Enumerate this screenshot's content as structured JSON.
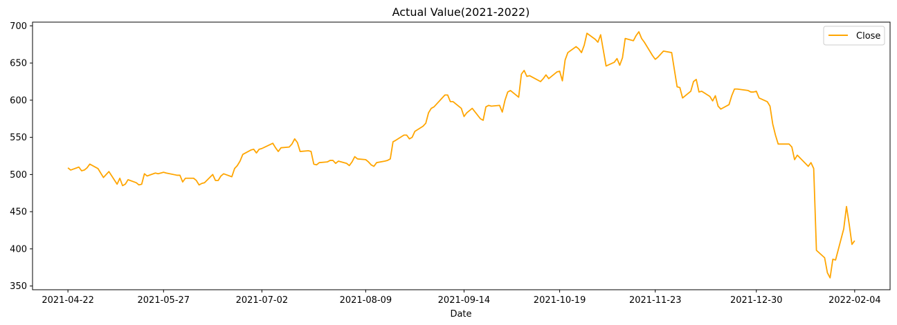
{
  "chart_data": {
    "type": "line",
    "title": "Actual Value(2021-2022)",
    "xlabel": "Date",
    "ylabel": "",
    "ylim": [
      345,
      705
    ],
    "yticks": [
      350,
      400,
      450,
      500,
      550,
      600,
      650,
      700
    ],
    "xticks": [
      "2021-04-22",
      "2021-05-27",
      "2021-07-02",
      "2021-08-09",
      "2021-09-14",
      "2021-10-19",
      "2021-11-23",
      "2021-12-30",
      "2022-02-04"
    ],
    "legend_position": "top-right",
    "series": [
      {
        "name": "Close",
        "color": "#ffa500",
        "x": [
          "2021-04-22",
          "2021-04-23",
          "2021-04-26",
          "2021-04-27",
          "2021-04-28",
          "2021-04-29",
          "2021-04-30",
          "2021-05-03",
          "2021-05-04",
          "2021-05-05",
          "2021-05-06",
          "2021-05-07",
          "2021-05-10",
          "2021-05-11",
          "2021-05-12",
          "2021-05-13",
          "2021-05-14",
          "2021-05-17",
          "2021-05-18",
          "2021-05-19",
          "2021-05-20",
          "2021-05-21",
          "2021-05-24",
          "2021-05-25",
          "2021-05-26",
          "2021-05-27",
          "2021-05-28",
          "2021-06-01",
          "2021-06-02",
          "2021-06-03",
          "2021-06-04",
          "2021-06-07",
          "2021-06-08",
          "2021-06-09",
          "2021-06-10",
          "2021-06-11",
          "2021-06-14",
          "2021-06-15",
          "2021-06-16",
          "2021-06-17",
          "2021-06-18",
          "2021-06-21",
          "2021-06-22",
          "2021-06-23",
          "2021-06-24",
          "2021-06-25",
          "2021-06-28",
          "2021-06-29",
          "2021-06-30",
          "2021-07-01",
          "2021-07-02",
          "2021-07-06",
          "2021-07-07",
          "2021-07-08",
          "2021-07-09",
          "2021-07-12",
          "2021-07-13",
          "2021-07-14",
          "2021-07-15",
          "2021-07-16",
          "2021-07-19",
          "2021-07-20",
          "2021-07-21",
          "2021-07-22",
          "2021-07-23",
          "2021-07-26",
          "2021-07-27",
          "2021-07-28",
          "2021-07-29",
          "2021-07-30",
          "2021-08-02",
          "2021-08-03",
          "2021-08-04",
          "2021-08-05",
          "2021-08-06",
          "2021-08-09",
          "2021-08-10",
          "2021-08-11",
          "2021-08-12",
          "2021-08-13",
          "2021-08-16",
          "2021-08-17",
          "2021-08-18",
          "2021-08-19",
          "2021-08-20",
          "2021-08-23",
          "2021-08-24",
          "2021-08-25",
          "2021-08-26",
          "2021-08-27",
          "2021-08-30",
          "2021-08-31",
          "2021-09-01",
          "2021-09-02",
          "2021-09-03",
          "2021-09-07",
          "2021-09-08",
          "2021-09-09",
          "2021-09-10",
          "2021-09-13",
          "2021-09-14",
          "2021-09-15",
          "2021-09-16",
          "2021-09-17",
          "2021-09-20",
          "2021-09-21",
          "2021-09-22",
          "2021-09-23",
          "2021-09-24",
          "2021-09-27",
          "2021-09-28",
          "2021-09-29",
          "2021-09-30",
          "2021-10-01",
          "2021-10-04",
          "2021-10-05",
          "2021-10-06",
          "2021-10-07",
          "2021-10-08",
          "2021-10-11",
          "2021-10-12",
          "2021-10-13",
          "2021-10-14",
          "2021-10-15",
          "2021-10-18",
          "2021-10-19",
          "2021-10-20",
          "2021-10-21",
          "2021-10-22",
          "2021-10-25",
          "2021-10-26",
          "2021-10-27",
          "2021-10-28",
          "2021-10-29",
          "2021-11-01",
          "2021-11-02",
          "2021-11-03",
          "2021-11-04",
          "2021-11-05",
          "2021-11-08",
          "2021-11-09",
          "2021-11-10",
          "2021-11-11",
          "2021-11-12",
          "2021-11-15",
          "2021-11-16",
          "2021-11-17",
          "2021-11-18",
          "2021-11-19",
          "2021-11-22",
          "2021-11-23",
          "2021-11-24",
          "2021-11-26",
          "2021-11-29",
          "2021-11-30",
          "2021-12-01",
          "2021-12-02",
          "2021-12-03",
          "2021-12-06",
          "2021-12-07",
          "2021-12-08",
          "2021-12-09",
          "2021-12-10",
          "2021-12-13",
          "2021-12-14",
          "2021-12-15",
          "2021-12-16",
          "2021-12-17",
          "2021-12-20",
          "2021-12-21",
          "2021-12-22",
          "2021-12-23",
          "2021-12-27",
          "2021-12-28",
          "2021-12-29",
          "2021-12-30",
          "2021-12-31",
          "2022-01-03",
          "2022-01-04",
          "2022-01-05",
          "2022-01-06",
          "2022-01-07",
          "2022-01-10",
          "2022-01-11",
          "2022-01-12",
          "2022-01-13",
          "2022-01-14",
          "2022-01-18",
          "2022-01-19",
          "2022-01-20",
          "2022-01-21",
          "2022-01-24",
          "2022-01-25",
          "2022-01-26",
          "2022-01-27",
          "2022-01-28",
          "2022-01-31",
          "2022-02-01",
          "2022-02-02",
          "2022-02-03",
          "2022-02-04"
        ],
        "values": [
          509,
          506,
          510,
          505,
          506,
          509,
          514,
          508,
          502,
          496,
          500,
          504,
          487,
          495,
          485,
          487,
          493,
          489,
          486,
          487,
          501,
          498,
          502,
          501,
          502,
          503,
          502,
          499,
          499,
          490,
          495,
          495,
          492,
          486,
          488,
          489,
          500,
          492,
          492,
          498,
          501,
          497,
          508,
          512,
          518,
          527,
          533,
          534,
          529,
          534,
          535,
          542,
          536,
          531,
          536,
          537,
          541,
          548,
          543,
          531,
          532,
          531,
          514,
          513,
          516,
          517,
          519,
          519,
          515,
          518,
          515,
          512,
          517,
          524,
          521,
          520,
          517,
          513,
          511,
          516,
          518,
          519,
          521,
          544,
          546,
          553,
          553,
          548,
          550,
          558,
          565,
          569,
          583,
          589,
          591,
          607,
          607,
          598,
          598,
          589,
          578,
          583,
          586,
          589,
          575,
          573,
          591,
          593,
          592,
          593,
          584,
          600,
          611,
          613,
          604,
          635,
          640,
          632,
          633,
          627,
          625,
          629,
          634,
          629,
          638,
          639,
          626,
          654,
          664,
          672,
          669,
          664,
          674,
          690,
          682,
          678,
          688,
          667,
          646,
          651,
          656,
          647,
          657,
          683,
          680,
          687,
          692,
          683,
          678,
          660,
          655,
          658,
          666,
          664,
          641,
          618,
          617,
          603,
          612,
          625,
          628,
          611,
          612,
          605,
          599,
          606,
          592,
          588,
          594,
          606,
          615,
          615,
          613,
          611,
          611,
          612,
          603,
          598,
          592,
          568,
          553,
          541,
          541,
          541,
          537,
          520,
          526,
          511,
          516,
          508,
          398,
          388,
          368,
          361,
          386,
          385,
          427,
          457,
          433,
          406,
          411
        ]
      }
    ]
  }
}
